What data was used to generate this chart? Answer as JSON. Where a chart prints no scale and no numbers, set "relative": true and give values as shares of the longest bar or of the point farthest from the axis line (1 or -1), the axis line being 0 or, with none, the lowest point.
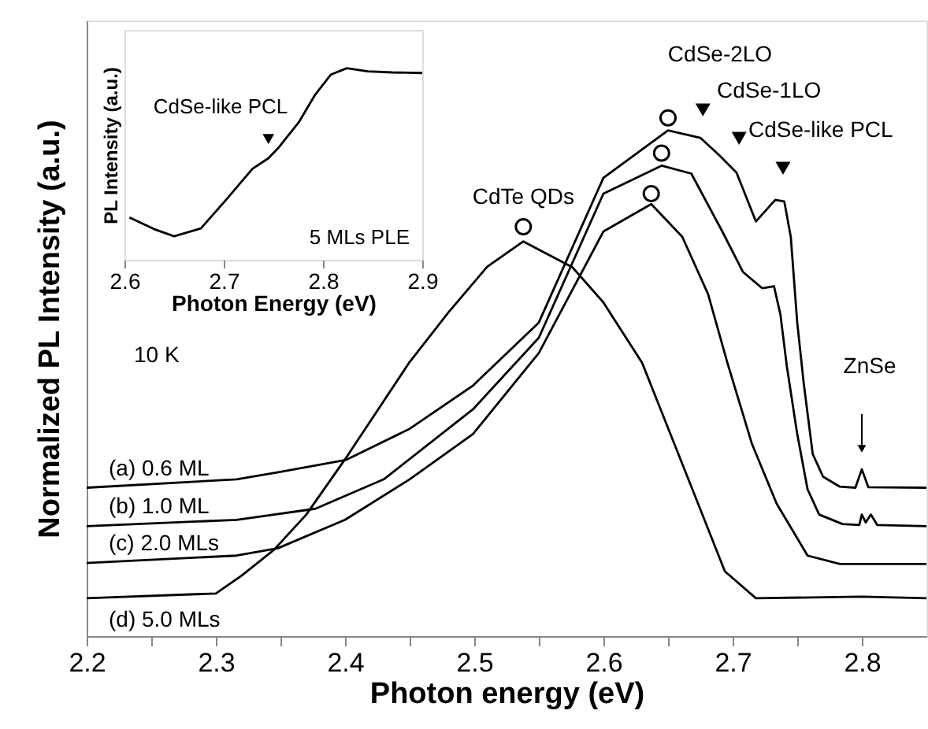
{
  "chart_data": [
    {
      "type": "line",
      "xlabel": "Photon energy (eV)",
      "ylabel": "Normalized PL Intensity (a.u.)",
      "relative": true,
      "grid": false,
      "xlim": [
        2.2,
        2.85
      ],
      "xticks": [
        2.2,
        {
          "value": 2.25,
          "label": null
        },
        2.3,
        {
          "value": 2.35,
          "label": null
        },
        2.4,
        {
          "value": 2.45,
          "label": null
        },
        2.5,
        {
          "value": 2.55,
          "label": null
        },
        2.6,
        {
          "value": 2.65,
          "label": null
        },
        2.7,
        {
          "value": 2.75,
          "label": null
        },
        2.8
      ],
      "series": [
        {
          "name": "(a) 0.6 ML",
          "color": "#000000",
          "x": [
            2.2,
            2.316,
            2.35,
            2.401,
            2.45,
            2.499,
            2.55,
            2.6,
            2.65,
            2.675,
            2.69,
            2.703,
            2.718,
            2.733,
            2.74,
            2.745,
            2.75,
            2.755,
            2.762,
            2.77,
            2.783,
            2.795,
            2.8,
            2.805,
            2.85
          ],
          "values": [
            0.282,
            0.298,
            0.312,
            0.335,
            0.394,
            0.476,
            0.596,
            0.871,
            0.961,
            0.947,
            0.913,
            0.881,
            0.788,
            0.829,
            0.826,
            0.759,
            0.596,
            0.481,
            0.346,
            0.303,
            0.284,
            0.282,
            0.317,
            0.283,
            0.282
          ]
        },
        {
          "name": "(b) 1.0 ML",
          "color": "#000000",
          "x": [
            2.2,
            2.316,
            2.377,
            2.43,
            2.499,
            2.55,
            2.6,
            2.645,
            2.668,
            2.692,
            2.708,
            2.723,
            2.732,
            2.737,
            2.742,
            2.75,
            2.758,
            2.767,
            2.785,
            2.798,
            2.8,
            2.803,
            2.807,
            2.812,
            2.85
          ],
          "values": [
            0.209,
            0.221,
            0.242,
            0.298,
            0.431,
            0.567,
            0.841,
            0.894,
            0.879,
            0.769,
            0.692,
            0.661,
            0.665,
            0.611,
            0.512,
            0.384,
            0.279,
            0.231,
            0.213,
            0.211,
            0.231,
            0.216,
            0.231,
            0.211,
            0.209
          ]
        },
        {
          "name": "(c) 2.0 MLs",
          "color": "#000000",
          "x": [
            2.2,
            2.316,
            2.348,
            2.4,
            2.45,
            2.499,
            2.55,
            2.6,
            2.637,
            2.661,
            2.681,
            2.696,
            2.715,
            2.734,
            2.758,
            2.783,
            2.85
          ],
          "values": [
            0.139,
            0.153,
            0.167,
            0.221,
            0.298,
            0.384,
            0.538,
            0.769,
            0.821,
            0.759,
            0.65,
            0.519,
            0.365,
            0.252,
            0.153,
            0.137,
            0.137
          ]
        },
        {
          "name": "(d) 5.0 MLs",
          "color": "#000000",
          "x": [
            2.2,
            2.3,
            2.32,
            2.345,
            2.37,
            2.4,
            2.45,
            2.48,
            2.51,
            2.538,
            2.576,
            2.6,
            2.63,
            2.67,
            2.694,
            2.718,
            2.8,
            2.85
          ],
          "values": [
            0.072,
            0.081,
            0.115,
            0.164,
            0.231,
            0.336,
            0.521,
            0.615,
            0.702,
            0.75,
            0.701,
            0.634,
            0.519,
            0.272,
            0.123,
            0.072,
            0.075,
            0.072
          ]
        },
        {
          "type": "scatter",
          "marker": "circle",
          "color": "#000000",
          "x": [
            2.538,
            2.65,
            2.645,
            2.637
          ],
          "values": [
            0.778,
            0.985,
            0.918,
            0.841
          ]
        },
        {
          "type": "scatter",
          "marker": "triangle",
          "color": "#000000",
          "x": [
            2.677,
            2.705,
            2.739
          ],
          "values": [
            1.0,
            0.946,
            0.889
          ]
        }
      ],
      "annotations": [
        {
          "text": "CdTe QDs",
          "x": 2.538,
          "y": 0.75
        },
        "CdSe-2LO",
        "CdSe-1LO",
        "CdSe-like PCL",
        "ZnSe",
        "10 K"
      ]
    },
    {
      "type": "line",
      "xlabel": "Photon Energy (eV)",
      "ylabel": "PL Intensity (a.u.)",
      "relative": true,
      "grid": false,
      "xlim": [
        2.6,
        2.9
      ],
      "xticks": [
        2.6,
        2.7,
        2.8,
        2.9
      ],
      "series": [
        {
          "color": "#000000",
          "x": [
            2.605,
            2.63,
            2.65,
            2.677,
            2.702,
            2.729,
            2.745,
            2.756,
            2.776,
            2.792,
            2.808,
            2.824,
            2.845,
            2.87,
            2.9
          ],
          "values": [
            0.221,
            0.16,
            0.123,
            0.164,
            0.311,
            0.475,
            0.53,
            0.59,
            0.721,
            0.861,
            0.967,
            1.0,
            0.984,
            0.978,
            0.975
          ]
        },
        {
          "type": "scatter",
          "marker": "triangle",
          "color": "#000000",
          "x": [
            2.745
          ],
          "values": [
            0.63
          ]
        }
      ],
      "annotations": [
        "CdSe-like PCL",
        "5 MLs PLE"
      ]
    }
  ]
}
